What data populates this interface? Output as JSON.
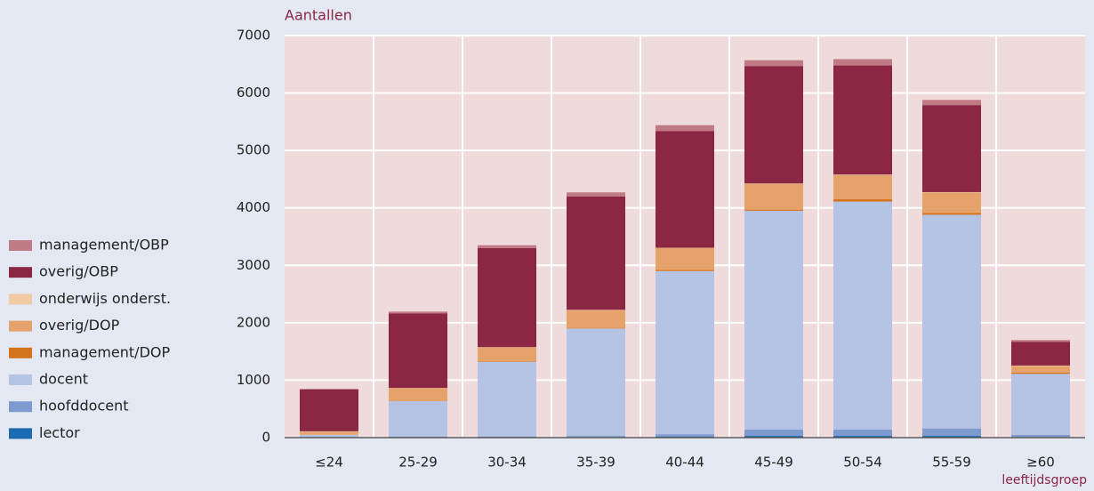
{
  "chart_data": {
    "type": "stacked-bar",
    "ylabel": "Aantallen",
    "xlabel": "leeftijdsgroep",
    "categories": [
      "≤24",
      "25-29",
      "30-34",
      "35-39",
      "40-44",
      "45-49",
      "50-54",
      "55-59",
      "≥60"
    ],
    "series": [
      {
        "name": "lector",
        "color": "#1a6bb0",
        "values": [
          5,
          5,
          5,
          10,
          20,
          30,
          30,
          30,
          10
        ]
      },
      {
        "name": "hoofddocent",
        "color": "#7e9bd0",
        "values": [
          5,
          10,
          15,
          20,
          40,
          110,
          110,
          130,
          40
        ]
      },
      {
        "name": "docent",
        "color": "#b5c4e4",
        "values": [
          40,
          620,
          1300,
          1870,
          2840,
          3810,
          3970,
          3720,
          1060
        ]
      },
      {
        "name": "management/DOP",
        "color": "#d4731e",
        "values": [
          0,
          5,
          10,
          10,
          20,
          20,
          40,
          30,
          20
        ]
      },
      {
        "name": "overig/DOP",
        "color": "#e5a36b",
        "values": [
          50,
          220,
          240,
          310,
          380,
          450,
          420,
          360,
          120
        ]
      },
      {
        "name": "onderwijs onderst.",
        "color": "#f2cba5",
        "values": [
          10,
          5,
          5,
          5,
          5,
          5,
          10,
          5,
          5
        ]
      },
      {
        "name": "overig/OBP",
        "color": "#8b2742",
        "values": [
          730,
          1300,
          1725,
          1975,
          2035,
          2045,
          1900,
          1515,
          415
        ]
      },
      {
        "name": "management/OBP",
        "color": "#c07a84",
        "values": [
          10,
          30,
          50,
          70,
          100,
          100,
          110,
          90,
          30
        ]
      }
    ],
    "ylim": [
      0,
      7000
    ],
    "yticks": [
      0,
      1000,
      2000,
      3000,
      4000,
      5000,
      6000,
      7000
    ],
    "grid": true,
    "legend": "left"
  }
}
